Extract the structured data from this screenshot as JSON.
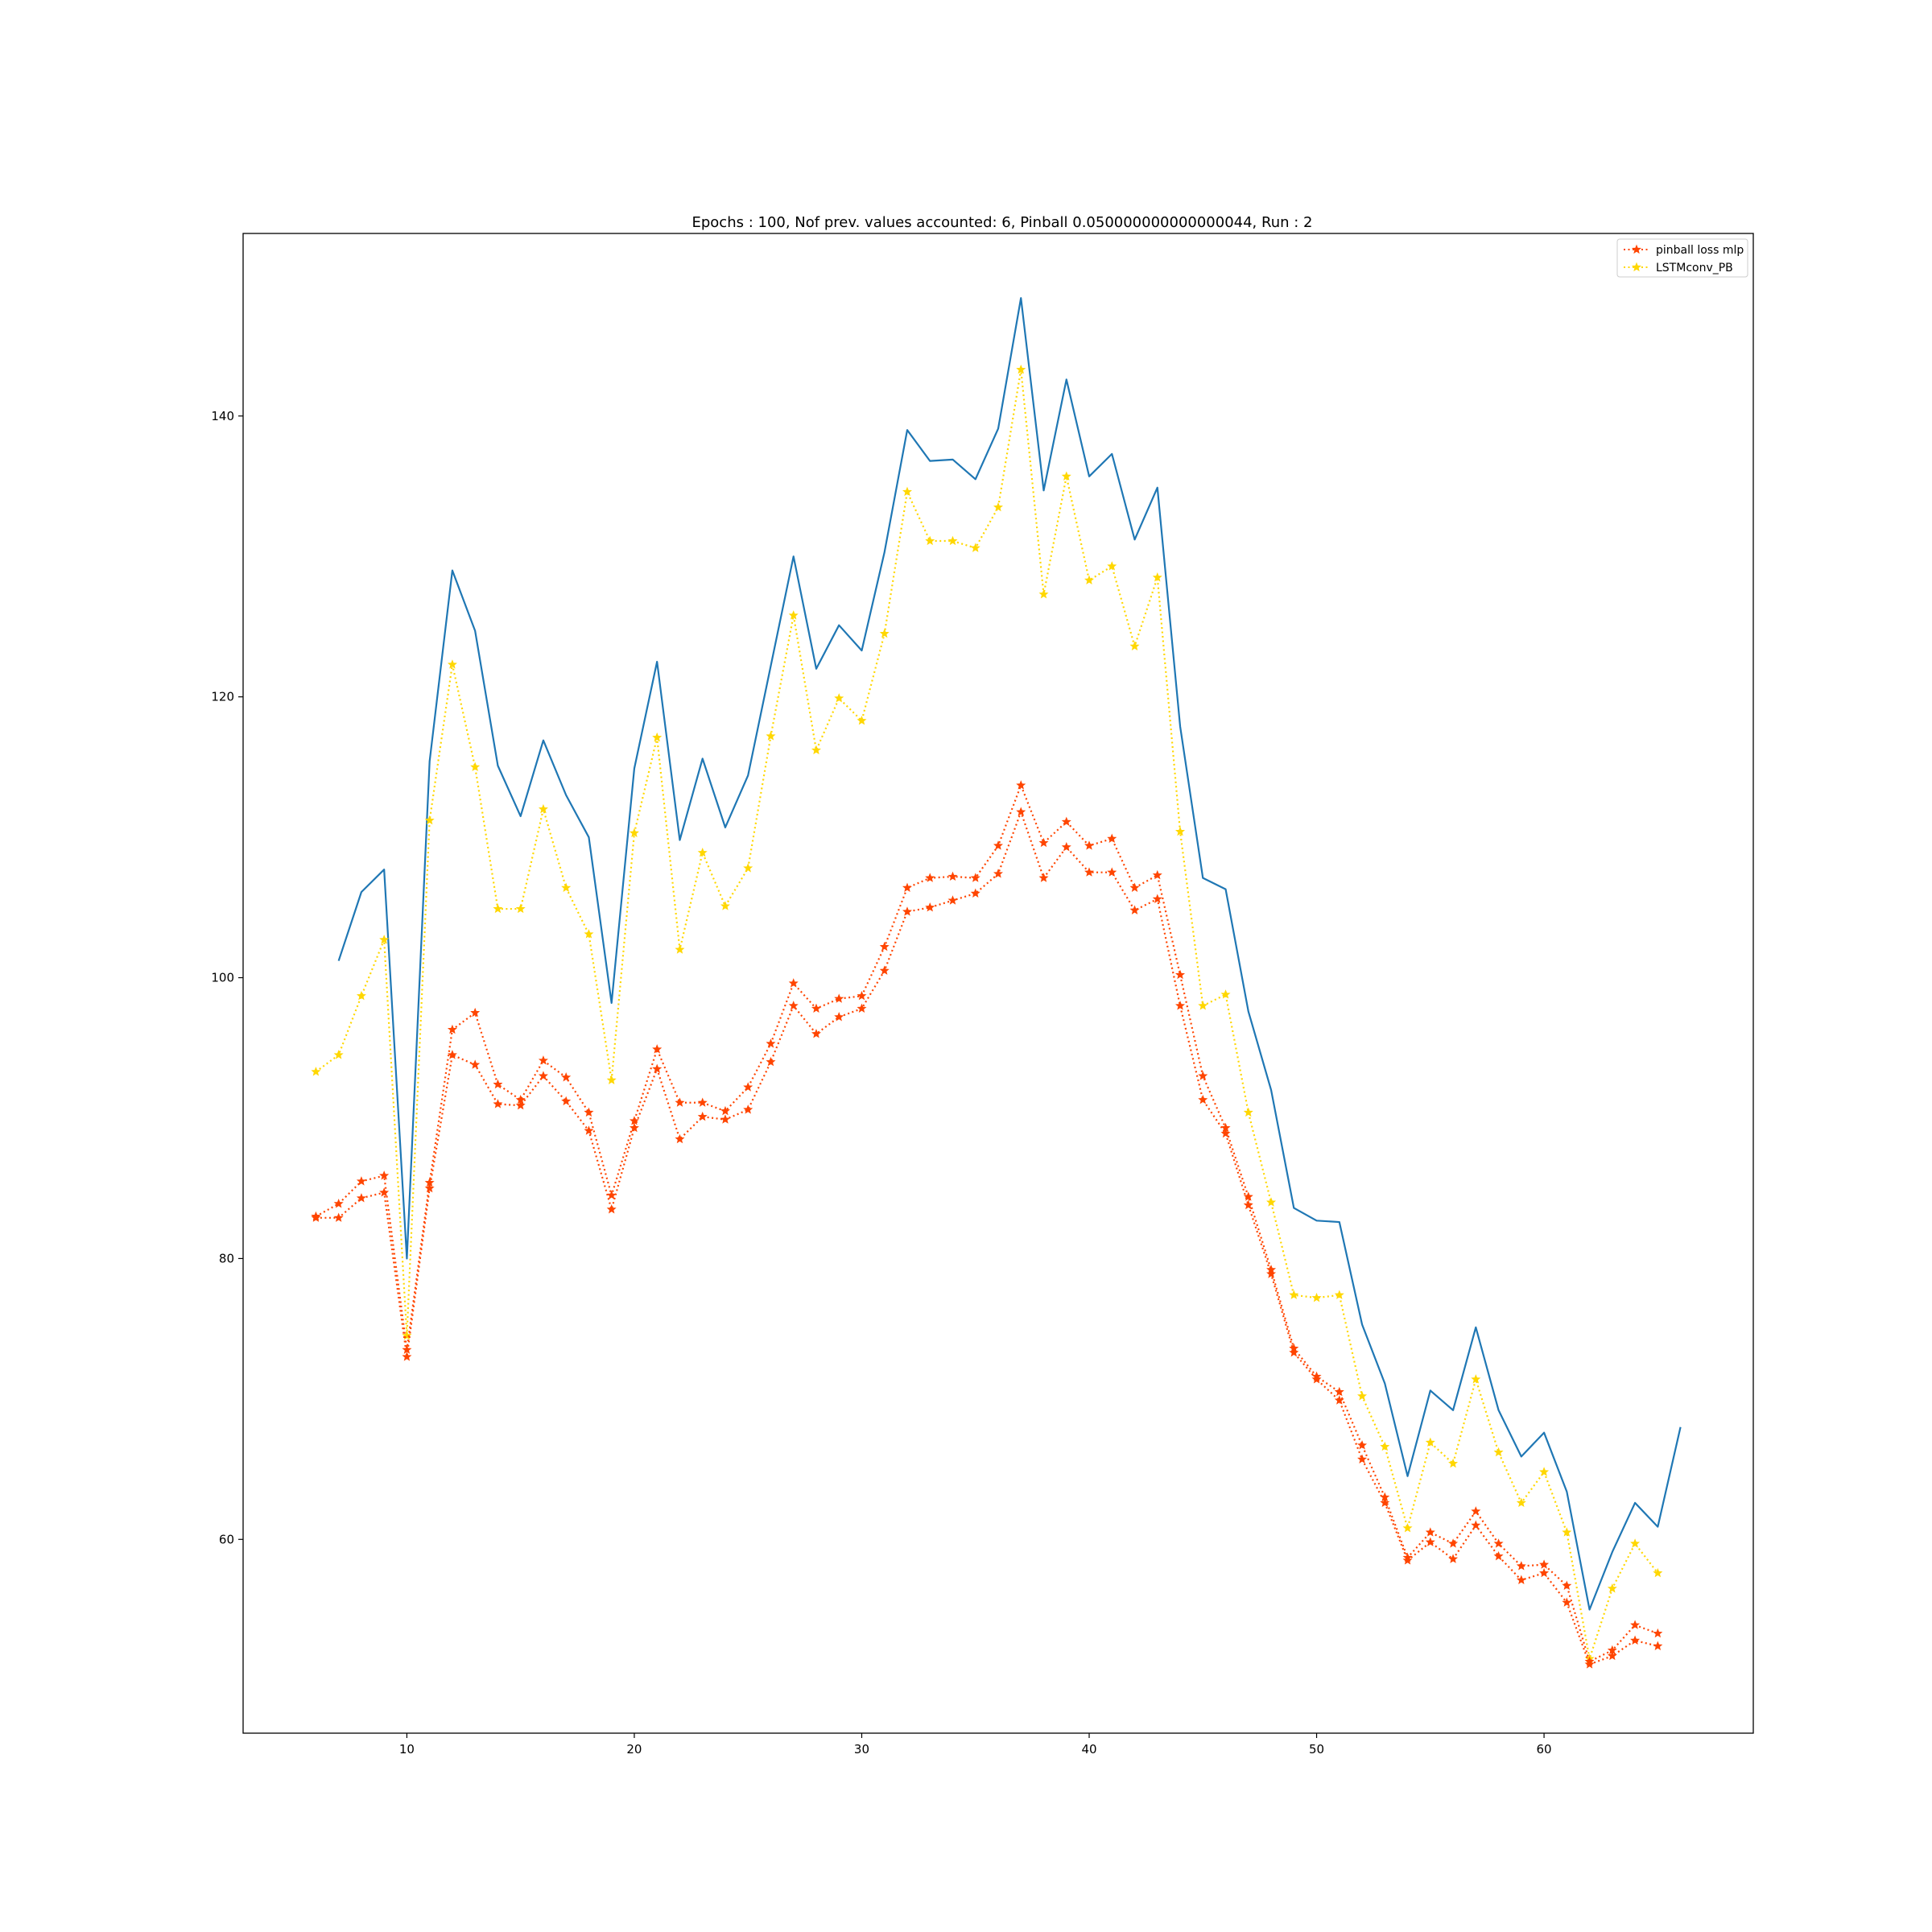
{
  "chart_data": {
    "type": "line",
    "title": "Epochs : 100, Nof prev. values accounted: 6, Pinball 0.050000000000000044, Run : 2",
    "xlabel": "",
    "ylabel": "",
    "xlim": [
      2.8,
      69.2
    ],
    "ylim": [
      46.2,
      153.0
    ],
    "x_ticks": [
      10,
      20,
      30,
      40,
      50,
      60
    ],
    "y_ticks": [
      60,
      80,
      100,
      120,
      140
    ],
    "grid": false,
    "legend_position": "upper right",
    "legend": [
      "pinball loss mlp",
      "LSTMconv_PB"
    ],
    "colors": {
      "actual": "#1f77b4",
      "mlp": "#ff4500",
      "lstm": "#ffd700"
    },
    "x": [
      6,
      7,
      8,
      9,
      10,
      11,
      12,
      13,
      14,
      15,
      16,
      17,
      18,
      19,
      20,
      21,
      22,
      23,
      24,
      25,
      26,
      27,
      28,
      29,
      30,
      31,
      32,
      33,
      34,
      35,
      36,
      37,
      38,
      39,
      40,
      41,
      42,
      43,
      44,
      45,
      46,
      47,
      48,
      49,
      50,
      51,
      52,
      53,
      54,
      55,
      56,
      57,
      58,
      59,
      60,
      61,
      62,
      63,
      64,
      65,
      66
    ],
    "series": [
      {
        "key": "actual",
        "style": "solid",
        "values": [
          null,
          101.2,
          106.1,
          107.7,
          80.0,
          115.4,
          129.0,
          124.7,
          115.1,
          111.5,
          116.9,
          113.0,
          110.0,
          98.2,
          114.9,
          122.5,
          109.8,
          115.6,
          110.7,
          114.4,
          122.2,
          130.0,
          122.0,
          125.1,
          123.3,
          130.3,
          139.0,
          136.8,
          136.9,
          135.5,
          139.1,
          148.4,
          134.7,
          142.6,
          135.7,
          137.3,
          131.2,
          134.9,
          117.9,
          107.1,
          106.3,
          97.6,
          92.0,
          83.6,
          82.7,
          82.6,
          75.3,
          71.1,
          64.5,
          70.6,
          69.2,
          75.1,
          69.2,
          65.9,
          67.6,
          63.4,
          55.0,
          59.1,
          62.6,
          60.9,
          68.0
        ]
      },
      {
        "key": "lstm",
        "name": "LSTMconv_PB",
        "style": "dotted",
        "values": [
          93.3,
          94.5,
          98.7,
          102.7,
          74.5,
          111.2,
          122.3,
          115.0,
          104.9,
          104.9,
          112.0,
          106.4,
          103.1,
          92.7,
          110.3,
          117.1,
          102.0,
          108.9,
          105.1,
          107.8,
          117.2,
          125.8,
          116.2,
          119.9,
          118.3,
          124.5,
          134.6,
          131.1,
          131.1,
          130.6,
          133.5,
          143.3,
          127.3,
          135.7,
          128.3,
          129.3,
          123.6,
          128.5,
          110.4,
          98.0,
          98.8,
          90.4,
          84.0,
          77.4,
          77.2,
          77.4,
          70.2,
          66.6,
          60.8,
          66.9,
          65.4,
          71.4,
          66.2,
          62.6,
          64.8,
          60.5,
          51.5,
          56.5,
          59.7,
          57.6,
          null
        ]
      },
      {
        "key": "mlp",
        "name": "pinball loss mlp",
        "style": "dotted",
        "values": [
          83.0,
          83.9,
          85.5,
          85.9,
          73.5,
          85.4,
          96.3,
          97.5,
          92.4,
          91.3,
          94.1,
          92.9,
          90.4,
          84.5,
          89.8,
          94.9,
          91.1,
          91.1,
          90.5,
          92.2,
          95.3,
          99.6,
          97.8,
          98.5,
          98.7,
          102.2,
          106.4,
          107.1,
          107.2,
          107.1,
          109.4,
          113.7,
          109.6,
          111.1,
          109.4,
          109.9,
          106.4,
          107.3,
          100.2,
          93.0,
          89.3,
          84.4,
          79.2,
          73.6,
          71.6,
          70.5,
          66.7,
          63.0,
          58.7,
          60.5,
          59.7,
          62.0,
          59.7,
          58.1,
          58.2,
          56.7,
          51.3,
          52.1,
          53.9,
          53.3,
          null
        ]
      },
      {
        "key": "mlp",
        "style": "dotted",
        "values": [
          82.9,
          82.9,
          84.3,
          84.7,
          73.0,
          85.0,
          94.5,
          93.8,
          91.0,
          90.9,
          93.0,
          91.2,
          89.1,
          83.5,
          89.3,
          93.5,
          88.5,
          90.1,
          89.9,
          90.6,
          94.0,
          98.0,
          96.0,
          97.2,
          97.8,
          100.5,
          104.7,
          105.0,
          105.5,
          106.0,
          107.4,
          111.8,
          107.1,
          109.3,
          107.5,
          107.5,
          104.8,
          105.6,
          98.0,
          91.3,
          88.9,
          83.8,
          78.9,
          73.3,
          71.4,
          69.9,
          65.7,
          62.6,
          58.5,
          59.8,
          58.6,
          61.0,
          58.8,
          57.1,
          57.6,
          55.5,
          51.1,
          51.7,
          52.8,
          52.4,
          null
        ]
      }
    ]
  }
}
